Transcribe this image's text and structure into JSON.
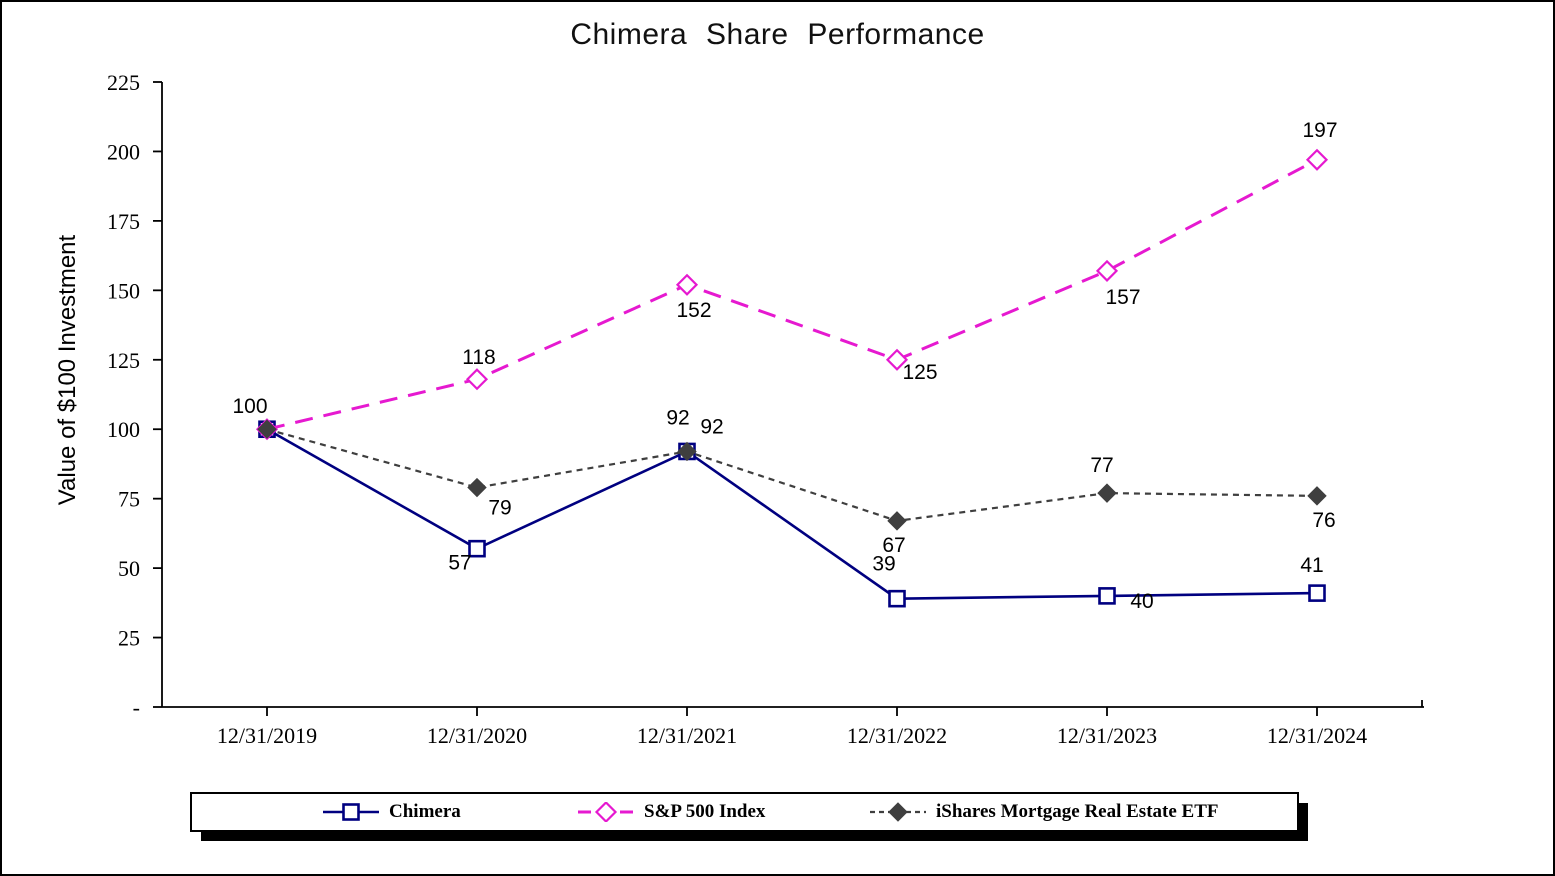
{
  "chart_data": {
    "type": "line",
    "title": "Chimera Share Performance",
    "ylabel": "Value of $100 Investment",
    "xlabel": "",
    "x_categories": [
      "12/31/2019",
      "12/31/2020",
      "12/31/2021",
      "12/31/2022",
      "12/31/2023",
      "12/31/2024"
    ],
    "y_ticks": {
      "values": [
        225,
        200,
        175,
        150,
        125,
        100,
        75,
        50,
        25,
        0
      ],
      "labels": [
        "225",
        "200",
        "175",
        "150",
        "125",
        "100",
        "75",
        "50",
        "25",
        "-"
      ]
    },
    "ylim": [
      0,
      225
    ],
    "grid": false,
    "legend_position": "bottom",
    "axis_color": "#000000",
    "series": [
      {
        "name": "Chimera",
        "values": [
          100,
          57,
          92,
          39,
          40,
          41
        ],
        "labels": [
          "100",
          "57",
          "92",
          "39",
          "40",
          "41"
        ],
        "label_offsets": [
          [
            -17,
            -23
          ],
          [
            -17,
            14
          ],
          [
            -9,
            -34
          ],
          [
            -13,
            -35
          ],
          [
            35,
            5
          ],
          [
            -5,
            -28
          ]
        ],
        "color": "#000080",
        "line_style": "solid",
        "marker": "open-square"
      },
      {
        "name": "S&P 500 Index",
        "values": [
          100,
          118,
          152,
          125,
          157,
          197
        ],
        "labels": [
          "",
          "118",
          "152",
          "125",
          "157",
          "197"
        ],
        "label_offsets": [
          [
            0,
            0
          ],
          [
            2,
            -22
          ],
          [
            7,
            25
          ],
          [
            23,
            12
          ],
          [
            16,
            26
          ],
          [
            3,
            -30
          ]
        ],
        "color": "#E619D0",
        "line_style": "dashed",
        "marker": "open-diamond"
      },
      {
        "name": "iShares Mortgage Real Estate ETF",
        "values": [
          100,
          79,
          92,
          67,
          77,
          76
        ],
        "labels": [
          "",
          "79",
          "92",
          "67",
          "77",
          "76"
        ],
        "label_offsets": [
          [
            0,
            0
          ],
          [
            23,
            20
          ],
          [
            25,
            -25
          ],
          [
            -3,
            24
          ],
          [
            -5,
            -28
          ],
          [
            7,
            24
          ]
        ],
        "color": "#3F3F3F",
        "line_style": "dotted",
        "marker": "filled-diamond"
      }
    ]
  }
}
